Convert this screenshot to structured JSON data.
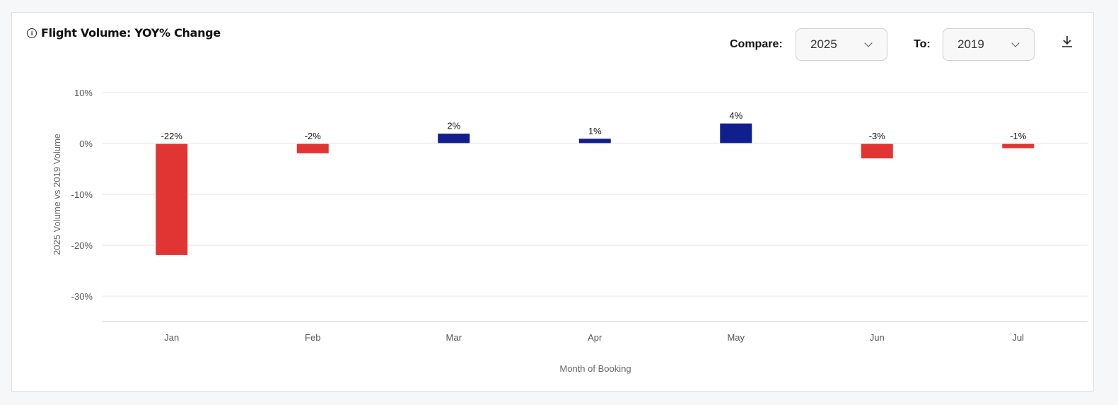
{
  "header": {
    "title": "Flight Volume: YOY% Change",
    "info_icon": "info-icon",
    "compare_label": "Compare:",
    "compare_value": "2025",
    "to_label": "To:",
    "to_value": "2019",
    "download_icon": "download-icon"
  },
  "colors": {
    "negative": "#e03532",
    "positive": "#101f8c",
    "grid": "#e3e3e3"
  },
  "chart_data": {
    "type": "bar",
    "title": "Flight Volume: YOY% Change",
    "categories": [
      "Jan",
      "Feb",
      "Mar",
      "Apr",
      "May",
      "Jun",
      "Jul"
    ],
    "values": [
      -22,
      -2,
      2,
      1,
      4,
      -3,
      -1
    ],
    "data_labels": [
      "-22%",
      "-2%",
      "2%",
      "1%",
      "4%",
      "-3%",
      "-1%"
    ],
    "xlabel": "Month of Booking",
    "ylabel": "2025 Volume vs 2019 Volume",
    "ylim": [
      -35,
      10
    ],
    "yticks": [
      10,
      0,
      -10,
      -20,
      -30
    ],
    "ytick_labels": [
      "10%",
      "0%",
      "-10%",
      "-20%",
      "-30%"
    ],
    "grid": true
  }
}
